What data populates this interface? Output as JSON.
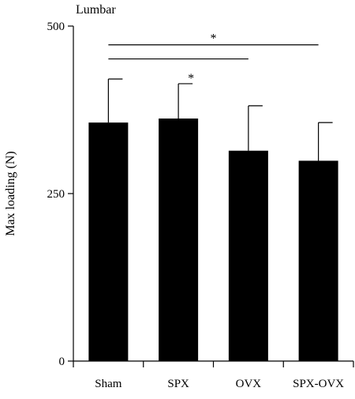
{
  "chart_data": {
    "type": "bar",
    "title": "Lumbar",
    "xlabel": "",
    "ylabel": "Max loading (N)",
    "categories": [
      "Sham",
      "SPX",
      "OVX",
      "SPX-OVX"
    ],
    "values": [
      356,
      362,
      314,
      299
    ],
    "errors": [
      65,
      52,
      67,
      57
    ],
    "ylim": [
      0,
      500
    ],
    "yticks": [
      0,
      250,
      500
    ],
    "bar_color": "#000000",
    "grid": false,
    "legend": "none",
    "significance": [
      {
        "from": "Sham",
        "to": "SPX-OVX",
        "y": 472,
        "label": "*"
      },
      {
        "from": "Sham",
        "to": "OVX",
        "y": 451,
        "label": ""
      }
    ],
    "bar_annotations": [
      {
        "category": "SPX",
        "label": "*"
      }
    ]
  }
}
